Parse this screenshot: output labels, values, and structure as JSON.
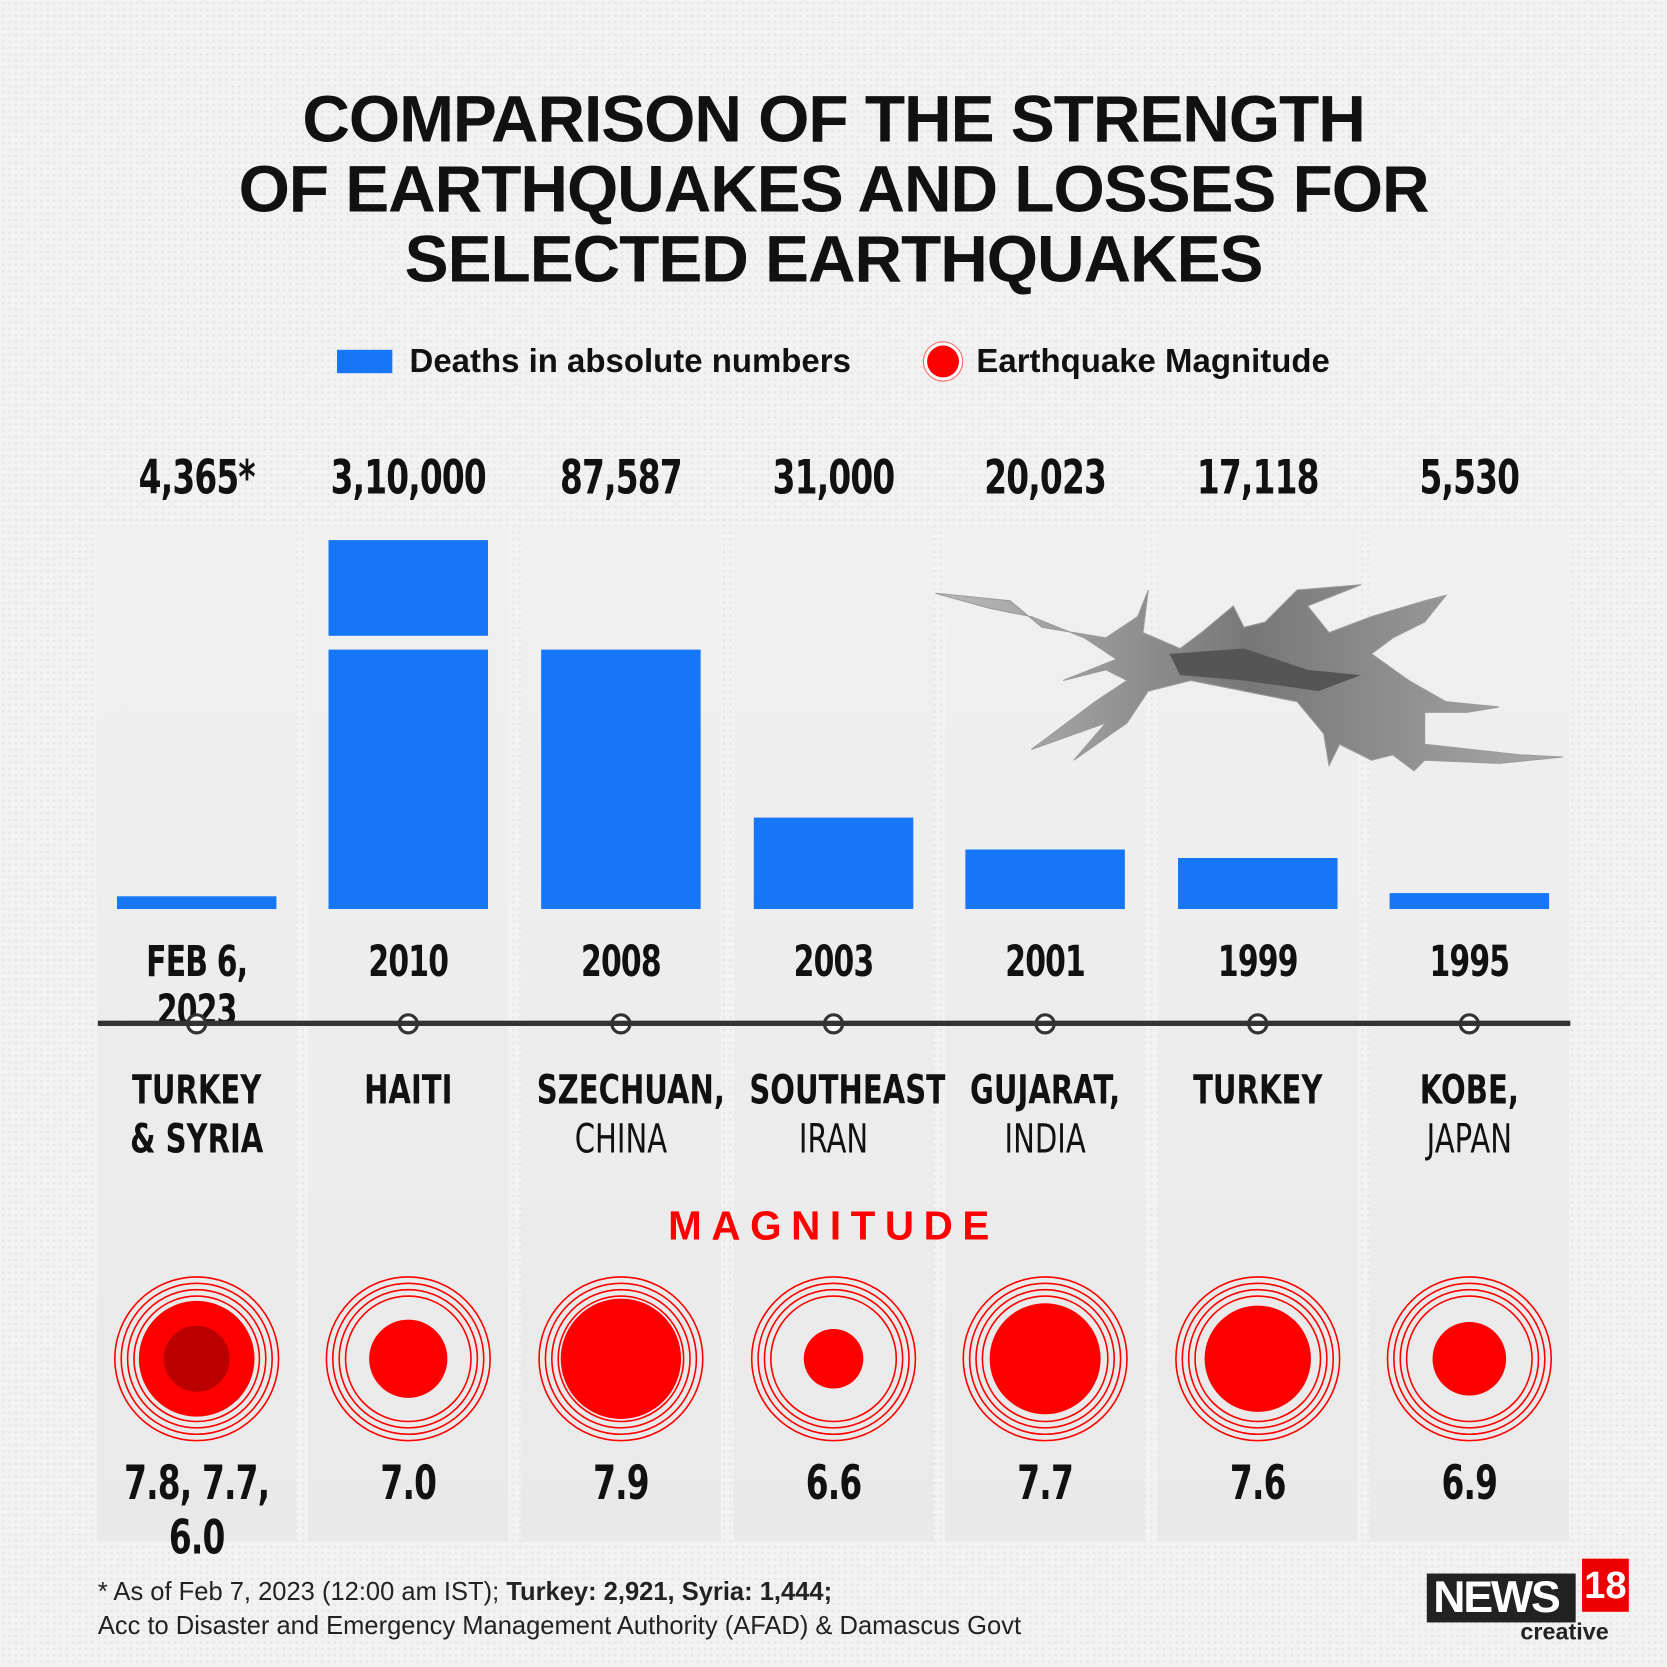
{
  "title": [
    "COMPARISON OF THE STRENGTH",
    "OF EARTHQUAKES AND LOSSES FOR",
    "SELECTED EARTHQUAKES"
  ],
  "legend": {
    "bars": "Deaths in absolute numbers",
    "circles": "Earthquake Magnitude"
  },
  "colors": {
    "bar": "#1576f6",
    "magnitude": "#ff0000",
    "text": "#111111"
  },
  "magnitude_label": "MAGNITUDE",
  "chart_data": {
    "type": "bar",
    "categories": [
      "TURKEY & SYRIA",
      "HAITI",
      "SZECHUAN, CHINA",
      "SOUTHEAST IRAN",
      "GUJARAT, INDIA",
      "TURKEY",
      "KOBE, JAPAN"
    ],
    "deaths": [
      4365,
      310000,
      87587,
      31000,
      20023,
      17118,
      5530
    ],
    "death_labels": [
      "4,365*",
      "3,10,000",
      "87,587",
      "31,000",
      "20,023",
      "17,118",
      "5,530"
    ],
    "years": [
      "FEB 6, 2023",
      "2010",
      "2008",
      "2003",
      "2001",
      "1999",
      "1995"
    ],
    "loc_line1": [
      "TURKEY",
      "HAITI",
      "SZECHUAN,",
      "SOUTHEAST",
      "GUJARAT,",
      "TURKEY",
      "KOBE,"
    ],
    "loc_line2": [
      "& SYRIA",
      "",
      "CHINA",
      "IRAN",
      "INDIA",
      "",
      "JAPAN"
    ],
    "magnitudes": [
      7.8,
      7.0,
      7.9,
      6.6,
      7.7,
      7.6,
      6.9
    ],
    "magnitude_labels": [
      "7.8, 7.7, 6.0",
      "7.0",
      "7.9",
      "6.6",
      "7.7",
      "7.6",
      "6.9"
    ],
    "axis_break": "HAITI bar broken"
  },
  "footer": {
    "note": "* As of Feb 7, 2023 (12:00 am IST); ",
    "bold": "Turkey: 2,921, Syria: 1,444;",
    "source": "Acc to Disaster and Emergency Management Authority (AFAD) & Damascus Govt"
  },
  "logo": {
    "text": "NEWS",
    "num": "18",
    "sub": "creative"
  }
}
